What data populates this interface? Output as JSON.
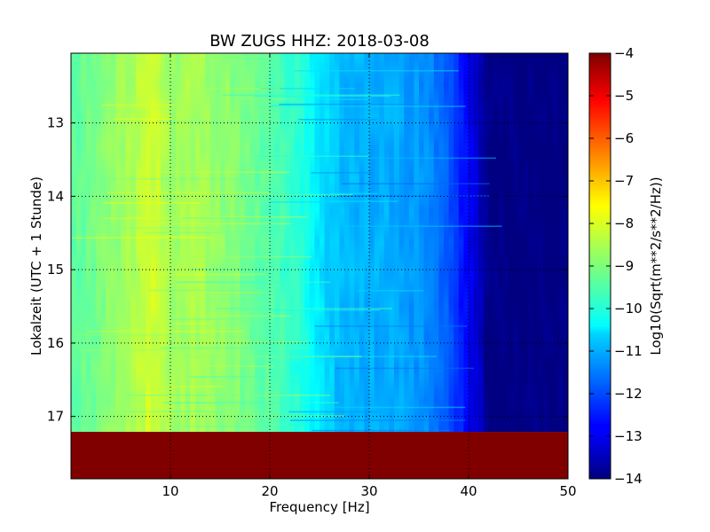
{
  "chart_data": {
    "type": "heatmap",
    "title": "BW ZUGS HHZ: 2018-03-08",
    "xlabel": "Frequency [Hz]",
    "ylabel": "Lokalzeit (UTC + 1 Stunde)",
    "xlim": [
      0,
      50
    ],
    "ylim": [
      17.85,
      12.05
    ],
    "y_inverted": true,
    "grid": true,
    "xticks": [
      10,
      20,
      30,
      40,
      50
    ],
    "yticks": [
      13,
      14,
      15,
      16,
      17
    ],
    "colorbar": {
      "label": "Log10(Sqrt(m**2/s**2/Hz))",
      "range": [
        -14,
        -4
      ],
      "ticks": [
        -4,
        -5,
        -6,
        -7,
        -8,
        -9,
        -10,
        -11,
        -12,
        -13,
        -14
      ],
      "colormap": "jet"
    },
    "data_time_range": [
      12.05,
      17.21
    ],
    "masked_time_range": [
      17.21,
      17.85
    ],
    "masked_value": -4,
    "frequency_profile": {
      "frequency_hz": [
        0,
        3,
        6,
        8,
        10,
        13,
        16,
        20,
        23,
        25,
        27,
        30,
        33,
        36,
        38,
        39,
        40,
        41,
        42,
        50
      ],
      "log10_psd": [
        -9.4,
        -9.0,
        -8.6,
        -8.2,
        -8.7,
        -8.6,
        -8.9,
        -9.4,
        -9.9,
        -10.5,
        -10.9,
        -11.0,
        -11.1,
        -11.4,
        -11.9,
        -12.4,
        -12.8,
        -13.3,
        -14.0,
        -14.0
      ]
    }
  }
}
